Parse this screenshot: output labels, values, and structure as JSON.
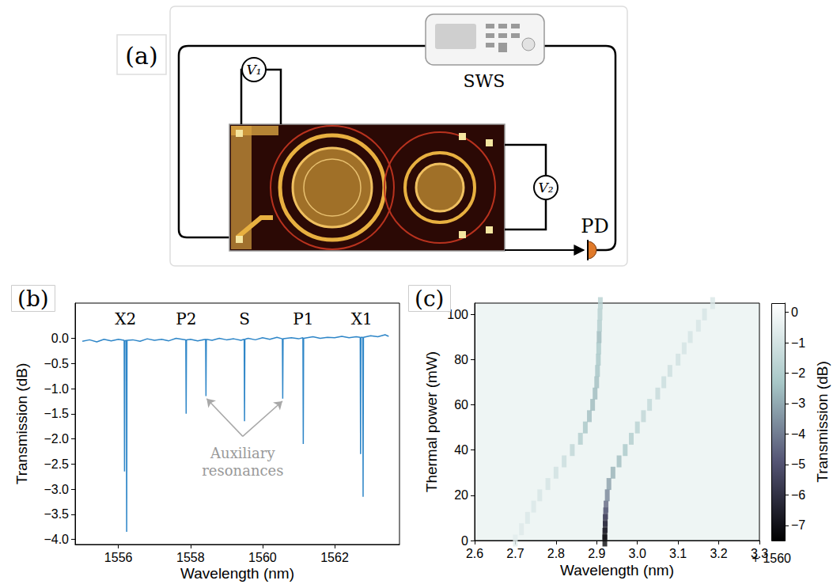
{
  "diagram": {
    "panel_label": "(a)",
    "instrument": "SWS",
    "voltmeters": [
      "V₁",
      "V₂"
    ],
    "detector": "PD"
  },
  "chart_data": [
    {
      "type": "line",
      "title": "(b)",
      "x_label": "Wavelength (nm)",
      "y_label": "Transmission (dB)",
      "x": [
        1555.0,
        1555.2,
        1555.4,
        1555.6,
        1555.8,
        1556.0,
        1556.16,
        1556.17,
        1556.18,
        1556.22,
        1556.23,
        1556.24,
        1556.4,
        1556.6,
        1556.8,
        1557.0,
        1557.2,
        1557.4,
        1557.6,
        1557.87,
        1557.88,
        1557.89,
        1558.0,
        1558.2,
        1558.42,
        1558.43,
        1558.44,
        1558.6,
        1558.8,
        1559.0,
        1559.2,
        1559.4,
        1559.49,
        1559.5,
        1559.51,
        1559.6,
        1559.8,
        1560.0,
        1560.2,
        1560.4,
        1560.55,
        1560.56,
        1560.57,
        1560.8,
        1561.0,
        1561.12,
        1561.13,
        1561.14,
        1561.4,
        1561.6,
        1561.8,
        1562.0,
        1562.2,
        1562.4,
        1562.6,
        1562.71,
        1562.72,
        1562.73,
        1562.78,
        1562.79,
        1562.8,
        1563.0,
        1563.2,
        1563.4,
        1563.5
      ],
      "series": [
        {
          "color": "#2e86c8",
          "values": [
            -0.06,
            -0.03,
            -0.07,
            -0.02,
            -0.05,
            -0.02,
            -0.04,
            -2.65,
            -0.05,
            -0.04,
            -3.85,
            -0.04,
            -0.03,
            -0.06,
            -0.01,
            -0.04,
            -0.02,
            -0.05,
            0.0,
            -0.03,
            -1.5,
            -0.03,
            -0.02,
            -0.05,
            -0.02,
            -1.15,
            -0.02,
            -0.04,
            0.0,
            -0.03,
            -0.01,
            -0.04,
            -0.02,
            -1.65,
            -0.02,
            0.0,
            -0.03,
            0.01,
            -0.02,
            0.02,
            -0.01,
            -1.2,
            -0.01,
            0.01,
            -0.01,
            0.01,
            -2.1,
            0.0,
            0.03,
            0.0,
            0.02,
            0.01,
            0.04,
            0.01,
            0.03,
            0.02,
            -2.3,
            0.02,
            0.02,
            -3.15,
            0.02,
            0.05,
            0.03,
            0.07,
            0.04
          ]
        }
      ],
      "xlim": [
        1554.8,
        1563.8
      ],
      "xticks": [
        1556,
        1558,
        1560,
        1562
      ],
      "ylim": [
        -4.1,
        0.7
      ],
      "yticks": [
        {
          "value": -4,
          "label": "−4.0"
        },
        {
          "value": -3.5,
          "label": "−3.5"
        },
        {
          "value": -3,
          "label": "−3.0"
        },
        {
          "value": -2.5,
          "label": "−2.5"
        },
        {
          "value": -2,
          "label": "−2.0"
        },
        {
          "value": -1.5,
          "label": "−1.5"
        },
        {
          "value": -1,
          "label": "−1.0"
        },
        {
          "value": -0.5,
          "label": "−0.5"
        },
        {
          "value": 0,
          "label": "0.0"
        }
      ],
      "grid": false,
      "annotations": [
        {
          "text": "X2",
          "x": 1556.2,
          "y": 0.38
        },
        {
          "text": "P2",
          "x": 1557.88,
          "y": 0.38
        },
        {
          "text": "S",
          "x": 1559.5,
          "y": 0.38
        },
        {
          "text": "P1",
          "x": 1561.13,
          "y": 0.38
        },
        {
          "text": "X1",
          "x": 1562.75,
          "y": 0.38
        },
        {
          "text": "Auxiliary resonances",
          "x": 1559.45,
          "y": -2.45,
          "arrows_from": [
            1559.45,
            -1.95
          ],
          "arrows_to": [
            [
              1558.45,
              -1.2
            ],
            [
              1560.55,
              -1.25
            ]
          ]
        }
      ]
    },
    {
      "type": "heatmap",
      "title": "(c)",
      "x_label": "Wavelength (nm)",
      "y_label": "Thermal power (mW)",
      "traces": [
        {
          "x": [
            2.7,
            2.715,
            2.73,
            2.745,
            2.76,
            2.78,
            2.8,
            2.82,
            2.84,
            2.86,
            2.872,
            2.882,
            2.89,
            2.896,
            2.9,
            2.902,
            2.904,
            2.905,
            2.906,
            2.907,
            2.908,
            2.909
          ],
          "y": [
            0,
            5,
            10,
            15,
            20,
            25,
            30,
            35,
            40,
            45,
            50,
            55,
            60,
            65,
            70,
            75,
            80,
            85,
            90,
            95,
            100,
            105
          ],
          "values": [
            -0.6,
            -0.7,
            -0.8,
            -0.8,
            -0.9,
            -1.0,
            -1.1,
            -1.3,
            -1.6,
            -2.0,
            -2.3,
            -2.5,
            -2.6,
            -2.6,
            -2.5,
            -2.4,
            -2.3,
            -2.2,
            -2.6,
            -2.0,
            -1.9,
            -1.8
          ]
        },
        {
          "x": [
            2.92,
            2.92,
            2.921,
            2.921,
            2.922,
            2.923,
            2.926,
            2.93,
            2.94,
            2.955,
            2.97,
            2.985,
            3.0,
            3.015,
            3.03,
            3.05,
            3.065,
            3.08,
            3.1,
            3.115,
            3.13,
            3.15,
            3.165,
            3.185
          ],
          "y": [
            0,
            3,
            6,
            9,
            12,
            15,
            20,
            25,
            30,
            35,
            40,
            45,
            50,
            55,
            60,
            65,
            70,
            75,
            80,
            85,
            90,
            95,
            100,
            105
          ],
          "values": [
            -7.2,
            -7.0,
            -6.5,
            -6.0,
            -5.2,
            -4.5,
            -3.8,
            -3.2,
            -2.8,
            -2.5,
            -2.2,
            -2.0,
            -1.8,
            -1.6,
            -1.5,
            -1.4,
            -1.3,
            -1.2,
            -1.1,
            -1.0,
            -1.0,
            -0.9,
            -0.9,
            -0.8
          ]
        }
      ],
      "xlim": [
        2.6,
        3.3
      ],
      "xticks": [
        2.6,
        2.7,
        2.8,
        2.9,
        {
          "value": 3,
          "label": "3.0"
        },
        3.1,
        3.2,
        3.3
      ],
      "ylim": [
        0,
        105
      ],
      "yticks": [
        0,
        20,
        40,
        60,
        80,
        100
      ],
      "grid": false,
      "annotations": [
        {
          "text": "+ 1560"
        }
      ],
      "colorbar": {
        "label": "Transmission (dB)",
        "range": [
          -7.5,
          0.3
        ],
        "ticks": [
          {
            "value": -7,
            "label": "−7"
          },
          {
            "value": -6,
            "label": "−6"
          },
          {
            "value": -5,
            "label": "−5"
          },
          {
            "value": -4,
            "label": "−4"
          },
          {
            "value": -3,
            "label": "−3"
          },
          {
            "value": -2,
            "label": "−2"
          },
          {
            "value": -1,
            "label": "−1"
          },
          0
        ]
      }
    }
  ]
}
